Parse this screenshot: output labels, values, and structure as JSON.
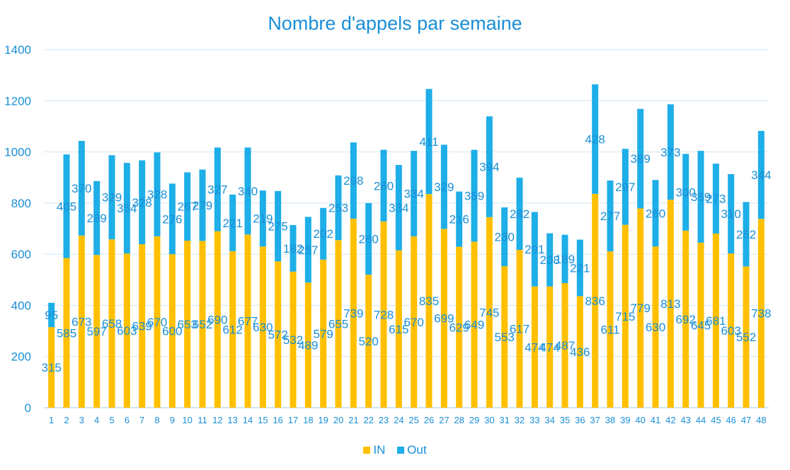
{
  "chart_data": {
    "type": "bar",
    "stacked": true,
    "title": "Nombre d'appels par semaine",
    "xlabel": "",
    "ylabel": "",
    "ylim": [
      0,
      1400
    ],
    "yticks": [
      0,
      200,
      400,
      600,
      800,
      1000,
      1200,
      1400
    ],
    "grid": true,
    "legend_position": "bottom",
    "categories": [
      "1",
      "2",
      "3",
      "4",
      "5",
      "6",
      "7",
      "8",
      "9",
      "10",
      "11",
      "12",
      "13",
      "14",
      "15",
      "16",
      "17",
      "18",
      "19",
      "20",
      "21",
      "22",
      "23",
      "24",
      "25",
      "26",
      "27",
      "28",
      "29",
      "30",
      "31",
      "32",
      "33",
      "34",
      "35",
      "36",
      "37",
      "38",
      "39",
      "40",
      "41",
      "42",
      "43",
      "44",
      "45",
      "46",
      "47",
      "48"
    ],
    "series": [
      {
        "name": "IN",
        "color": "#ffc000",
        "values": [
          315,
          585,
          673,
          597,
          658,
          603,
          639,
          670,
          600,
          653,
          652,
          690,
          612,
          677,
          630,
          572,
          532,
          489,
          579,
          655,
          739,
          520,
          728,
          615,
          670,
          835,
          699,
          629,
          649,
          745,
          553,
          617,
          474,
          474,
          487,
          436,
          836,
          611,
          715,
          779,
          630,
          813,
          692,
          645,
          681,
          603,
          552,
          738
        ]
      },
      {
        "name": "Out",
        "color": "#1eaee8",
        "values": [
          95,
          405,
          370,
          289,
          329,
          354,
          328,
          328,
          276,
          267,
          279,
          327,
          221,
          340,
          219,
          275,
          182,
          257,
          202,
          253,
          298,
          280,
          280,
          334,
          334,
          411,
          329,
          216,
          359,
          394,
          230,
          282,
          291,
          208,
          189,
          221,
          428,
          277,
          297,
          389,
          260,
          373,
          300,
          359,
          273,
          310,
          252,
          344
        ]
      }
    ]
  }
}
